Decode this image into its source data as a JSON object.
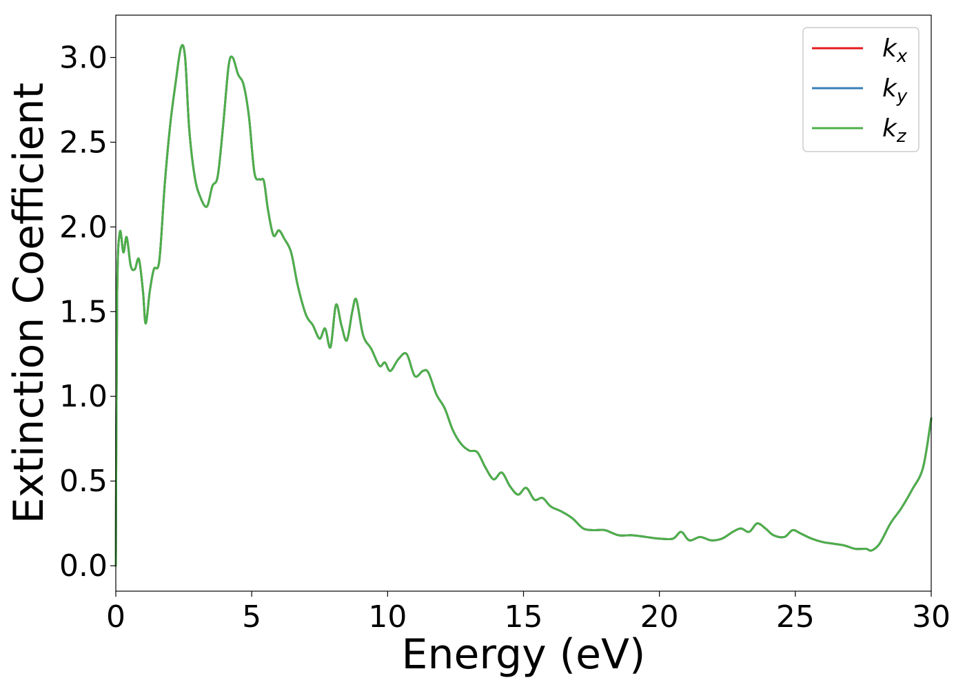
{
  "chart_data": {
    "type": "line",
    "title": "",
    "xlabel": "Energy (eV)",
    "ylabel": "Extinction Coefficient",
    "xlim": [
      0,
      30
    ],
    "ylim": [
      -0.15,
      3.25
    ],
    "xticks": [
      0,
      5,
      10,
      15,
      20,
      25,
      30
    ],
    "xtick_labels": [
      "0",
      "5",
      "10",
      "15",
      "20",
      "25",
      "30"
    ],
    "yticks": [
      0.0,
      0.5,
      1.0,
      1.5,
      2.0,
      2.5,
      3.0
    ],
    "ytick_labels": [
      "0.0",
      "0.5",
      "1.0",
      "1.5",
      "2.0",
      "2.5",
      "3.0"
    ],
    "grid": false,
    "legend_position": "top-right",
    "series": [
      {
        "name": "k_x",
        "legend_main": "k",
        "legend_sub": "x",
        "color": "#e41a1c",
        "x": [
          0,
          0.05,
          0.15,
          0.28,
          0.4,
          0.55,
          0.7,
          0.85,
          1.0,
          1.1,
          1.25,
          1.4,
          1.6,
          1.8,
          2.0,
          2.2,
          2.4,
          2.55,
          2.7,
          2.9,
          3.1,
          3.35,
          3.55,
          3.75,
          3.95,
          4.15,
          4.3,
          4.5,
          4.7,
          4.9,
          5.1,
          5.3,
          5.45,
          5.6,
          5.8,
          6.0,
          6.2,
          6.45,
          6.7,
          7.0,
          7.25,
          7.5,
          7.7,
          7.9,
          8.1,
          8.3,
          8.5,
          8.7,
          8.85,
          9.1,
          9.4,
          9.7,
          9.9,
          10.1,
          10.4,
          10.7,
          11.0,
          11.3,
          11.5,
          11.8,
          12.1,
          12.4,
          12.7,
          13.0,
          13.3,
          13.6,
          13.9,
          14.2,
          14.5,
          14.8,
          15.1,
          15.4,
          15.7,
          16.0,
          16.4,
          16.8,
          17.2,
          17.6,
          18.0,
          18.5,
          19.0,
          19.5,
          20.0,
          20.5,
          20.8,
          21.1,
          21.5,
          21.9,
          22.3,
          22.7,
          23.0,
          23.3,
          23.6,
          23.9,
          24.2,
          24.6,
          24.9,
          25.2,
          25.6,
          26.0,
          26.4,
          26.8,
          27.2,
          27.6,
          27.8,
          28.1,
          28.5,
          28.9,
          29.3,
          29.7,
          30.0
        ],
        "values": [
          0.0,
          1.6,
          1.97,
          1.85,
          1.94,
          1.77,
          1.75,
          1.81,
          1.62,
          1.43,
          1.62,
          1.75,
          1.8,
          2.25,
          2.6,
          2.85,
          3.06,
          3.0,
          2.58,
          2.3,
          2.18,
          2.12,
          2.24,
          2.3,
          2.6,
          2.95,
          3.0,
          2.9,
          2.84,
          2.65,
          2.32,
          2.28,
          2.27,
          2.1,
          1.95,
          1.98,
          1.93,
          1.85,
          1.65,
          1.48,
          1.42,
          1.34,
          1.4,
          1.29,
          1.54,
          1.42,
          1.33,
          1.5,
          1.57,
          1.36,
          1.28,
          1.18,
          1.2,
          1.15,
          1.22,
          1.25,
          1.12,
          1.15,
          1.14,
          1.01,
          0.93,
          0.8,
          0.72,
          0.68,
          0.67,
          0.58,
          0.51,
          0.55,
          0.47,
          0.42,
          0.46,
          0.39,
          0.4,
          0.35,
          0.32,
          0.28,
          0.22,
          0.21,
          0.21,
          0.18,
          0.18,
          0.17,
          0.16,
          0.16,
          0.2,
          0.15,
          0.17,
          0.15,
          0.16,
          0.2,
          0.22,
          0.2,
          0.25,
          0.22,
          0.18,
          0.17,
          0.21,
          0.19,
          0.16,
          0.14,
          0.13,
          0.12,
          0.1,
          0.1,
          0.09,
          0.13,
          0.25,
          0.34,
          0.45,
          0.58,
          0.87
        ]
      },
      {
        "name": "k_y",
        "legend_main": "k",
        "legend_sub": "y",
        "color": "#377eb8",
        "x": [
          0,
          0.05,
          0.15,
          0.28,
          0.4,
          0.55,
          0.7,
          0.85,
          1.0,
          1.1,
          1.25,
          1.4,
          1.6,
          1.8,
          2.0,
          2.2,
          2.4,
          2.55,
          2.7,
          2.9,
          3.1,
          3.35,
          3.55,
          3.75,
          3.95,
          4.15,
          4.3,
          4.5,
          4.7,
          4.9,
          5.1,
          5.3,
          5.45,
          5.6,
          5.8,
          6.0,
          6.2,
          6.45,
          6.7,
          7.0,
          7.25,
          7.5,
          7.7,
          7.9,
          8.1,
          8.3,
          8.5,
          8.7,
          8.85,
          9.1,
          9.4,
          9.7,
          9.9,
          10.1,
          10.4,
          10.7,
          11.0,
          11.3,
          11.5,
          11.8,
          12.1,
          12.4,
          12.7,
          13.0,
          13.3,
          13.6,
          13.9,
          14.2,
          14.5,
          14.8,
          15.1,
          15.4,
          15.7,
          16.0,
          16.4,
          16.8,
          17.2,
          17.6,
          18.0,
          18.5,
          19.0,
          19.5,
          20.0,
          20.5,
          20.8,
          21.1,
          21.5,
          21.9,
          22.3,
          22.7,
          23.0,
          23.3,
          23.6,
          23.9,
          24.2,
          24.6,
          24.9,
          25.2,
          25.6,
          26.0,
          26.4,
          26.8,
          27.2,
          27.6,
          27.8,
          28.1,
          28.5,
          28.9,
          29.3,
          29.7,
          30.0
        ],
        "values": [
          0.0,
          1.6,
          1.97,
          1.85,
          1.94,
          1.77,
          1.75,
          1.81,
          1.62,
          1.43,
          1.62,
          1.75,
          1.8,
          2.25,
          2.6,
          2.85,
          3.06,
          3.0,
          2.58,
          2.3,
          2.18,
          2.12,
          2.24,
          2.3,
          2.6,
          2.95,
          3.0,
          2.9,
          2.84,
          2.65,
          2.32,
          2.28,
          2.27,
          2.1,
          1.95,
          1.98,
          1.93,
          1.85,
          1.65,
          1.48,
          1.42,
          1.34,
          1.4,
          1.29,
          1.54,
          1.42,
          1.33,
          1.5,
          1.57,
          1.36,
          1.28,
          1.18,
          1.2,
          1.15,
          1.22,
          1.25,
          1.12,
          1.15,
          1.14,
          1.01,
          0.93,
          0.8,
          0.72,
          0.68,
          0.67,
          0.58,
          0.51,
          0.55,
          0.47,
          0.42,
          0.46,
          0.39,
          0.4,
          0.35,
          0.32,
          0.28,
          0.22,
          0.21,
          0.21,
          0.18,
          0.18,
          0.17,
          0.16,
          0.16,
          0.2,
          0.15,
          0.17,
          0.15,
          0.16,
          0.2,
          0.22,
          0.2,
          0.25,
          0.22,
          0.18,
          0.17,
          0.21,
          0.19,
          0.16,
          0.14,
          0.13,
          0.12,
          0.1,
          0.1,
          0.09,
          0.13,
          0.25,
          0.34,
          0.45,
          0.58,
          0.87
        ]
      },
      {
        "name": "k_z",
        "legend_main": "k",
        "legend_sub": "z",
        "color": "#4daf4a",
        "x": [
          0,
          0.05,
          0.15,
          0.28,
          0.4,
          0.55,
          0.7,
          0.85,
          1.0,
          1.1,
          1.25,
          1.4,
          1.6,
          1.8,
          2.0,
          2.2,
          2.4,
          2.55,
          2.7,
          2.9,
          3.1,
          3.35,
          3.55,
          3.75,
          3.95,
          4.15,
          4.3,
          4.5,
          4.7,
          4.9,
          5.1,
          5.3,
          5.45,
          5.6,
          5.8,
          6.0,
          6.2,
          6.45,
          6.7,
          7.0,
          7.25,
          7.5,
          7.7,
          7.9,
          8.1,
          8.3,
          8.5,
          8.7,
          8.85,
          9.1,
          9.4,
          9.7,
          9.9,
          10.1,
          10.4,
          10.7,
          11.0,
          11.3,
          11.5,
          11.8,
          12.1,
          12.4,
          12.7,
          13.0,
          13.3,
          13.6,
          13.9,
          14.2,
          14.5,
          14.8,
          15.1,
          15.4,
          15.7,
          16.0,
          16.4,
          16.8,
          17.2,
          17.6,
          18.0,
          18.5,
          19.0,
          19.5,
          20.0,
          20.5,
          20.8,
          21.1,
          21.5,
          21.9,
          22.3,
          22.7,
          23.0,
          23.3,
          23.6,
          23.9,
          24.2,
          24.6,
          24.9,
          25.2,
          25.6,
          26.0,
          26.4,
          26.8,
          27.2,
          27.6,
          27.8,
          28.1,
          28.5,
          28.9,
          29.3,
          29.7,
          30.0
        ],
        "values": [
          0.0,
          1.6,
          1.97,
          1.85,
          1.94,
          1.77,
          1.75,
          1.81,
          1.62,
          1.43,
          1.62,
          1.75,
          1.8,
          2.25,
          2.6,
          2.85,
          3.06,
          3.0,
          2.58,
          2.3,
          2.18,
          2.12,
          2.24,
          2.3,
          2.6,
          2.95,
          3.0,
          2.9,
          2.84,
          2.65,
          2.32,
          2.28,
          2.27,
          2.1,
          1.95,
          1.98,
          1.93,
          1.85,
          1.65,
          1.48,
          1.42,
          1.34,
          1.4,
          1.29,
          1.54,
          1.42,
          1.33,
          1.5,
          1.57,
          1.36,
          1.28,
          1.18,
          1.2,
          1.15,
          1.22,
          1.25,
          1.12,
          1.15,
          1.14,
          1.01,
          0.93,
          0.8,
          0.72,
          0.68,
          0.67,
          0.58,
          0.51,
          0.55,
          0.47,
          0.42,
          0.46,
          0.39,
          0.4,
          0.35,
          0.32,
          0.28,
          0.22,
          0.21,
          0.21,
          0.18,
          0.18,
          0.17,
          0.16,
          0.16,
          0.2,
          0.15,
          0.17,
          0.15,
          0.16,
          0.2,
          0.22,
          0.2,
          0.25,
          0.22,
          0.18,
          0.17,
          0.21,
          0.19,
          0.16,
          0.14,
          0.13,
          0.12,
          0.1,
          0.1,
          0.09,
          0.13,
          0.25,
          0.34,
          0.45,
          0.58,
          0.87
        ]
      }
    ]
  }
}
